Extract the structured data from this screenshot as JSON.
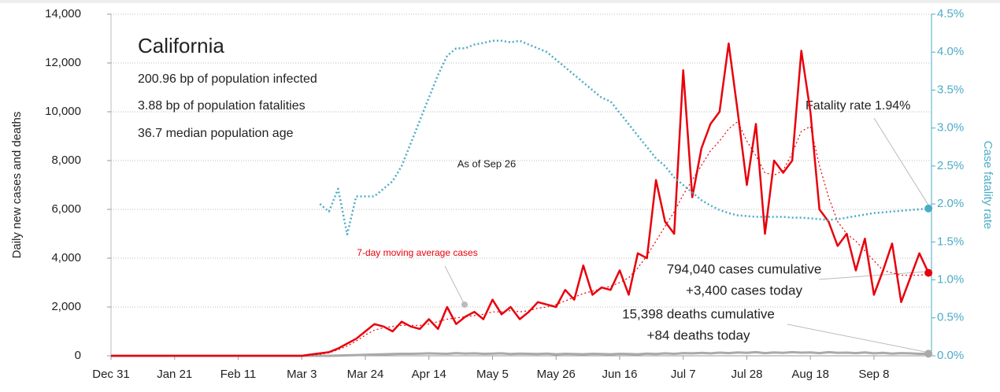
{
  "chart_data": {
    "type": "line",
    "title": "California",
    "subtitle": [
      "200.96 bp of population infected",
      "3.88 bp of population fatalities",
      "36.7 median population age"
    ],
    "ylabel": "Daily new cases and deaths",
    "y2label": "Case fatality rate",
    "annotations": [
      "As of Sep 26",
      "7-day moving average cases",
      "Fatality rate 1.94%",
      "794,040 cases cumulative",
      "+3,400 cases today",
      "15,398 deaths cumulative",
      "+84 deaths today"
    ],
    "x": [
      0,
      3,
      6,
      9,
      12,
      15,
      18,
      21,
      24,
      27,
      30,
      33,
      36,
      39,
      42,
      45,
      48,
      51,
      54,
      57,
      60,
      63,
      66,
      69,
      72,
      75,
      78,
      81,
      84,
      87,
      90,
      93,
      96,
      99,
      102,
      105,
      108,
      111,
      114,
      117,
      120,
      123,
      126,
      129,
      132,
      135,
      138,
      141,
      144,
      147,
      150,
      153,
      156,
      159,
      162,
      165,
      168,
      171,
      174,
      177,
      180,
      183,
      186,
      189,
      192,
      195,
      198,
      201,
      204,
      207,
      210,
      213,
      216,
      219,
      222,
      225,
      228,
      231,
      234,
      237,
      240,
      243,
      246,
      249,
      252,
      255,
      258,
      261,
      264,
      267,
      270
    ],
    "xlim": [
      0,
      271
    ],
    "xticks": [
      {
        "value": 0,
        "label": "Dec 31"
      },
      {
        "value": 21,
        "label": "Jan 21"
      },
      {
        "value": 42,
        "label": "Feb 11"
      },
      {
        "value": 63,
        "label": "Mar 3"
      },
      {
        "value": 84,
        "label": "Mar 24"
      },
      {
        "value": 105,
        "label": "Apr 14"
      },
      {
        "value": 126,
        "label": "May 5"
      },
      {
        "value": 147,
        "label": "May 26"
      },
      {
        "value": 168,
        "label": "Jun 16"
      },
      {
        "value": 189,
        "label": "Jul 7"
      },
      {
        "value": 210,
        "label": "Jul 28"
      },
      {
        "value": 231,
        "label": "Aug 18"
      },
      {
        "value": 252,
        "label": "Sep 8"
      }
    ],
    "ylim": [
      0,
      14000
    ],
    "yticks": [
      0,
      {
        "value": 2000,
        "label": "2,000"
      },
      {
        "value": 4000,
        "label": "4,000"
      },
      {
        "value": 6000,
        "label": "6,000"
      },
      {
        "value": 8000,
        "label": "8,000"
      },
      {
        "value": 10000,
        "label": "10,000"
      },
      {
        "value": 12000,
        "label": "12,000"
      },
      {
        "value": 14000,
        "label": "14,000"
      }
    ],
    "y2lim": [
      0,
      4.5
    ],
    "y2ticks": [
      {
        "value": 0,
        "label": "0.0%"
      },
      {
        "value": 0.5,
        "label": "0.5%"
      },
      {
        "value": 1,
        "label": "1.0%"
      },
      {
        "value": 1.5,
        "label": "1.5%"
      },
      {
        "value": 2,
        "label": "2.0%"
      },
      {
        "value": 2.5,
        "label": "2.5%"
      },
      {
        "value": 3,
        "label": "3.0%"
      },
      {
        "value": 3.5,
        "label": "3.5%"
      },
      {
        "value": 4,
        "label": "4.0%"
      },
      {
        "value": 4.5,
        "label": "4.5%"
      }
    ],
    "grid": true,
    "series": [
      {
        "color": "#aaaaaa",
        "width": 3,
        "dotted": false,
        "values": [
          0,
          0,
          0,
          0,
          0,
          0,
          0,
          0,
          0,
          0,
          0,
          0,
          0,
          0,
          0,
          0,
          0,
          0,
          0,
          0,
          0,
          0,
          0,
          0,
          0,
          10,
          20,
          30,
          40,
          50,
          60,
          70,
          80,
          80,
          90,
          100,
          90,
          80,
          110,
          90,
          100,
          80,
          90,
          100,
          70,
          90,
          80,
          70,
          90,
          60,
          80,
          70,
          60,
          80,
          70,
          60,
          80,
          70,
          60,
          90,
          70,
          100,
          80,
          110,
          100,
          120,
          100,
          130,
          110,
          140,
          120,
          150,
          110,
          140,
          120,
          150,
          130,
          140,
          110,
          150,
          120,
          130,
          110,
          140,
          100,
          120,
          90,
          110,
          100,
          80,
          84
        ]
      },
      {
        "color": "#e8000b",
        "width": 1.2,
        "dotted": true,
        "values": [
          0,
          0,
          0,
          0,
          0,
          0,
          0,
          0,
          0,
          0,
          0,
          0,
          0,
          0,
          0,
          0,
          0,
          0,
          0,
          0,
          0,
          0,
          20,
          60,
          120,
          250,
          400,
          600,
          850,
          1050,
          1150,
          1200,
          1250,
          1250,
          1250,
          1300,
          1400,
          1500,
          1550,
          1600,
          1650,
          1700,
          1800,
          1800,
          1850,
          1800,
          1850,
          1950,
          2000,
          2100,
          2250,
          2400,
          2550,
          2650,
          2750,
          2850,
          3000,
          3200,
          3600,
          4100,
          4700,
          5300,
          5900,
          6600,
          7200,
          7800,
          8400,
          8800,
          9300,
          9600,
          8800,
          8200,
          7500,
          7400,
          7600,
          8300,
          9200,
          9400,
          7800,
          6500,
          5500,
          5000,
          4700,
          4300,
          3900,
          3500,
          3400,
          3300,
          3300,
          3300,
          3350
        ]
      },
      {
        "color": "#e8000b",
        "width": 2.5,
        "dotted": false,
        "values": [
          0,
          0,
          0,
          0,
          0,
          0,
          0,
          0,
          0,
          0,
          0,
          0,
          0,
          0,
          0,
          0,
          0,
          0,
          0,
          0,
          0,
          0,
          50,
          100,
          150,
          300,
          500,
          700,
          1000,
          1300,
          1200,
          1000,
          1400,
          1200,
          1100,
          1500,
          1100,
          2000,
          1300,
          1600,
          1800,
          1500,
          2300,
          1700,
          2000,
          1500,
          1800,
          2200,
          2100,
          2000,
          2700,
          2300,
          3700,
          2500,
          2800,
          2700,
          3500,
          2500,
          4200,
          4000,
          7200,
          5500,
          5000,
          11700,
          6500,
          8500,
          9500,
          10000,
          12800,
          10000,
          7000,
          9500,
          5000,
          8000,
          7500,
          8000,
          12500,
          10000,
          6000,
          5500,
          4500,
          5000,
          3500,
          4800,
          2500,
          3500,
          4600,
          2200,
          3200,
          4200,
          3400
        ]
      },
      {
        "color": "#4bacc6",
        "width": 2.5,
        "dotted": true,
        "axis": "y2",
        "values": [
          null,
          null,
          null,
          null,
          null,
          null,
          null,
          null,
          null,
          null,
          null,
          null,
          null,
          null,
          null,
          null,
          null,
          null,
          null,
          null,
          null,
          null,
          null,
          2.0,
          1.9,
          2.2,
          1.6,
          2.1,
          2.1,
          2.1,
          2.2,
          2.3,
          2.5,
          2.8,
          3.1,
          3.4,
          3.7,
          3.95,
          4.05,
          4.05,
          4.1,
          4.12,
          4.15,
          4.15,
          4.13,
          4.15,
          4.1,
          4.05,
          4.0,
          3.9,
          3.8,
          3.7,
          3.6,
          3.5,
          3.4,
          3.35,
          3.2,
          3.05,
          2.9,
          2.75,
          2.6,
          2.5,
          2.35,
          2.25,
          2.15,
          2.05,
          1.98,
          1.92,
          1.88,
          1.85,
          1.84,
          1.83,
          1.83,
          1.83,
          1.83,
          1.82,
          1.82,
          1.81,
          1.8,
          1.79,
          1.8,
          1.82,
          1.84,
          1.86,
          1.88,
          1.89,
          1.9,
          1.91,
          1.92,
          1.93,
          1.94
        ]
      }
    ]
  }
}
